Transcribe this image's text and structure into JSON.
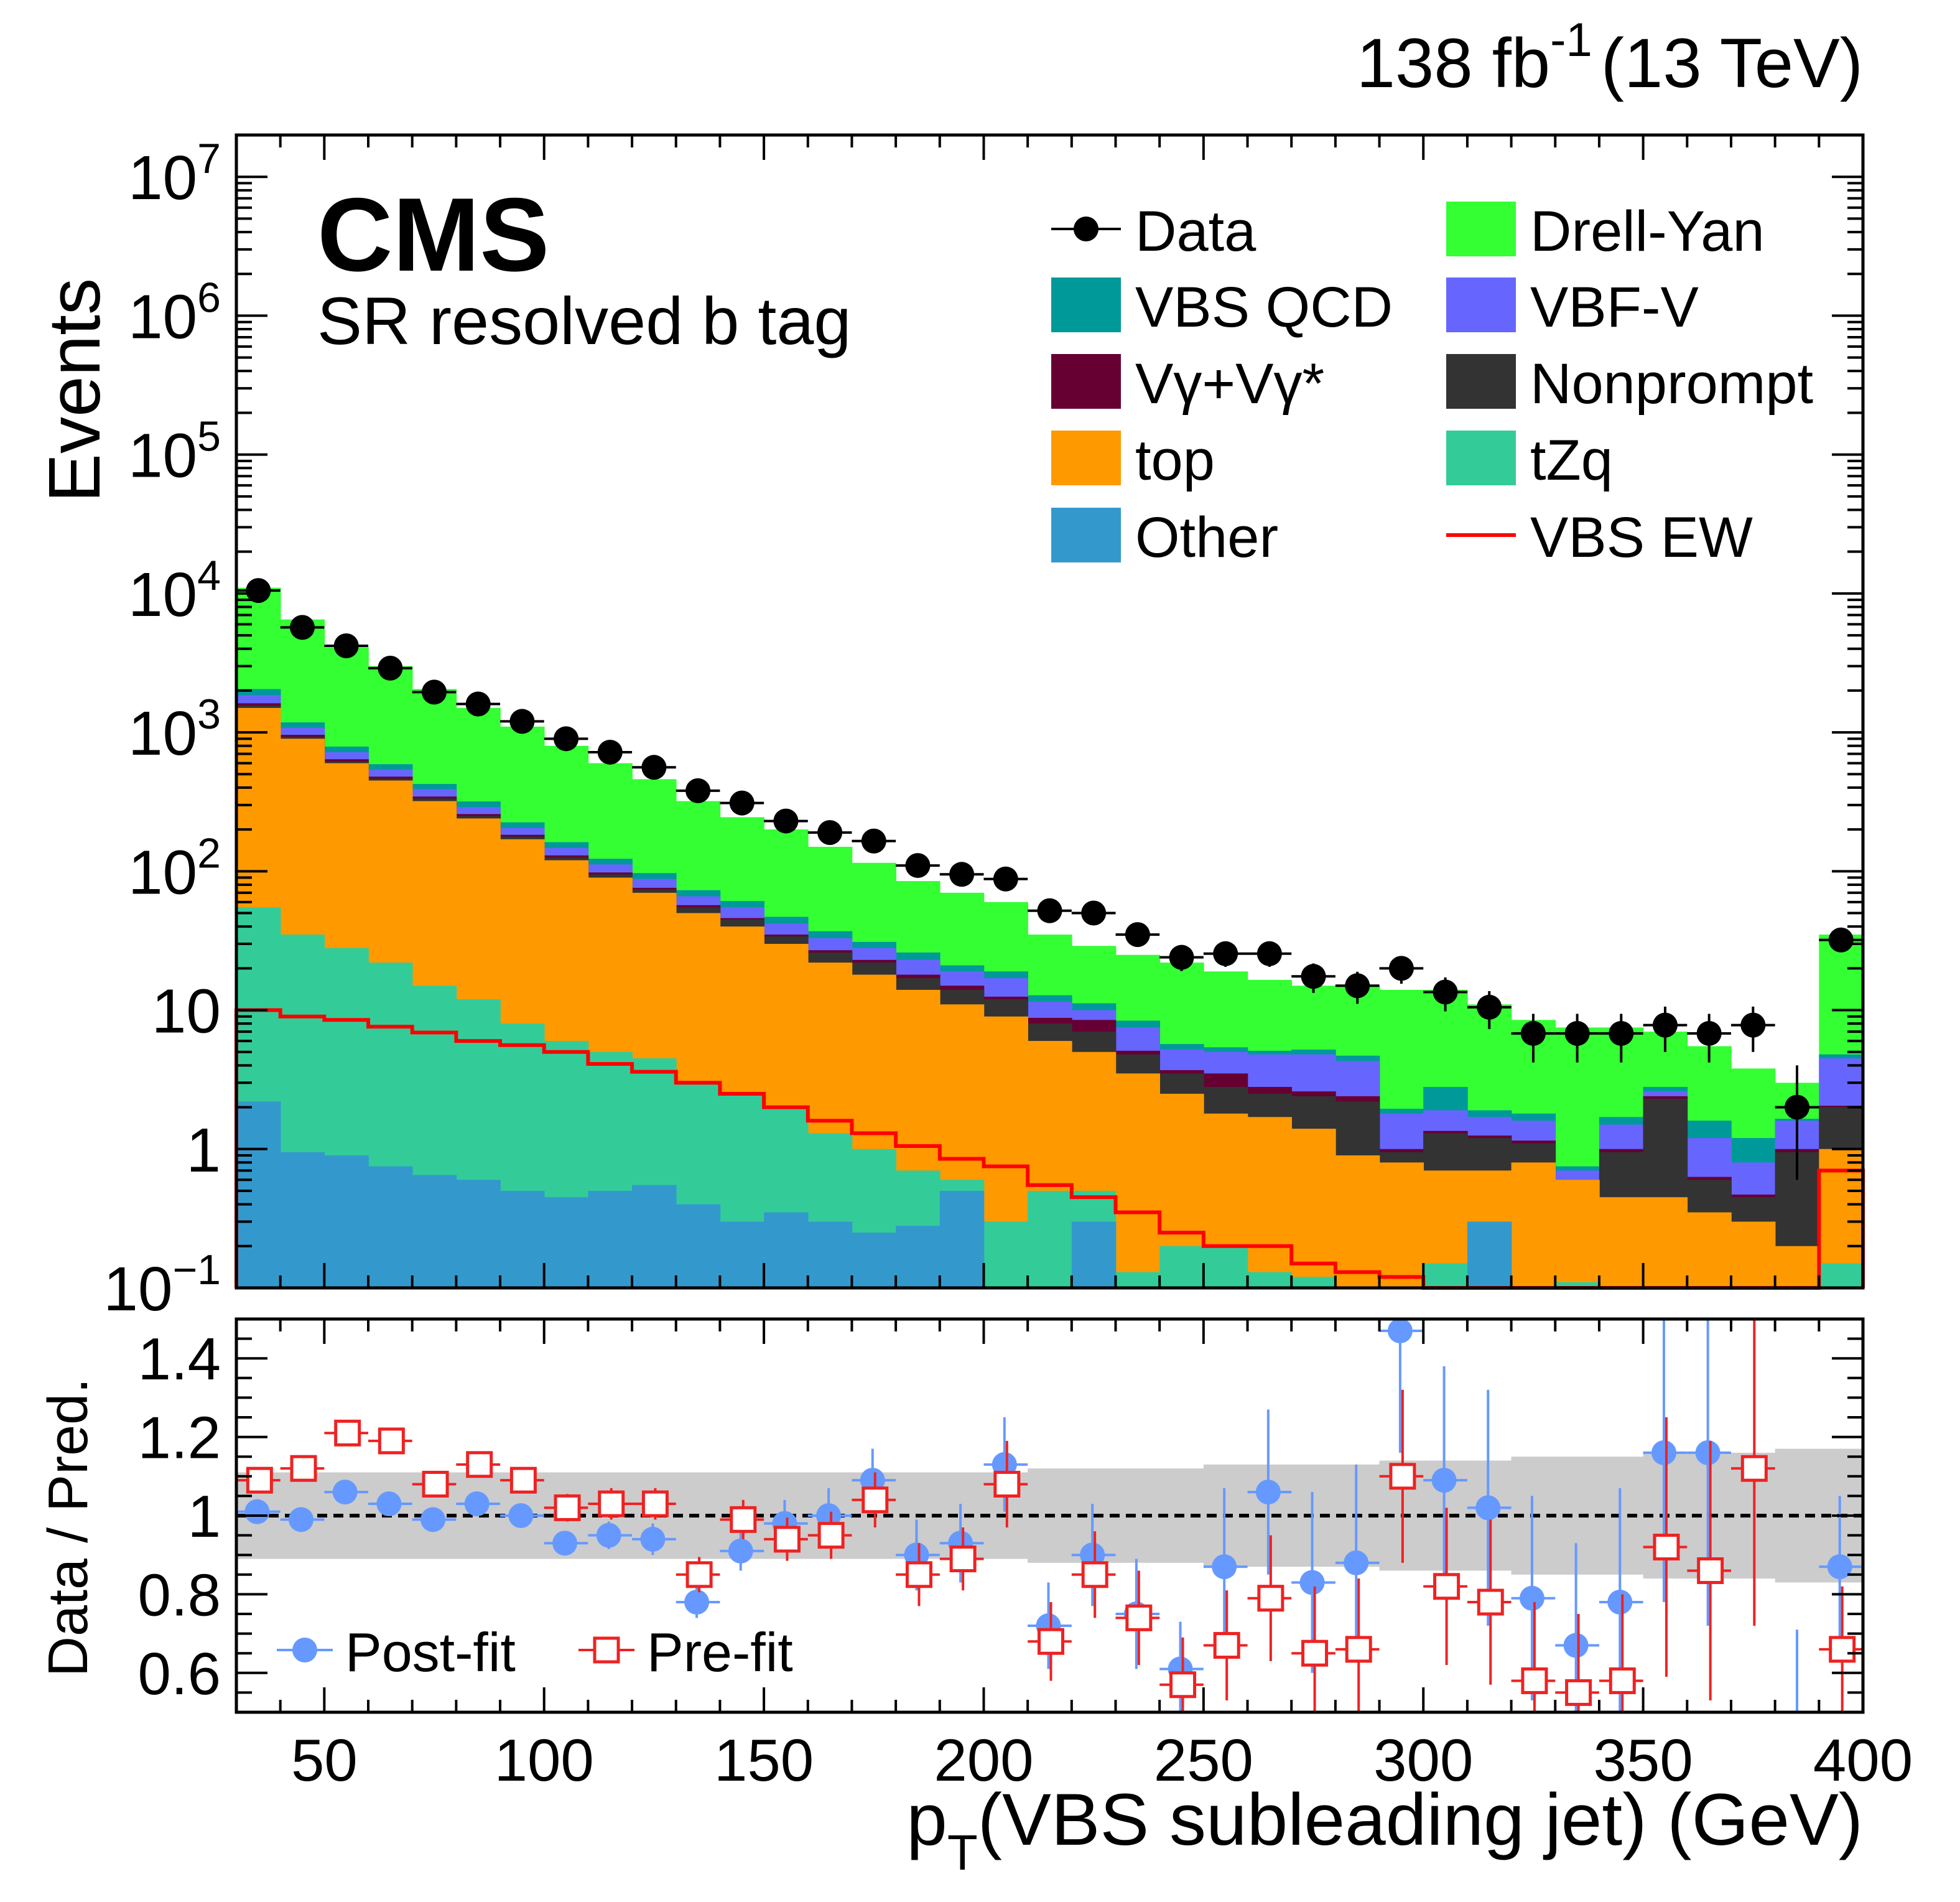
{
  "header": {
    "lumi_prefix": "138 fb",
    "lumi_exp": "-1",
    "energy": "(13 TeV)"
  },
  "cms_label": "CMS",
  "region_label": "SR resolved b tag",
  "chart_data": [
    {
      "type": "stacked_histogram",
      "scale": "log",
      "ylabel": "Events",
      "xlim": [
        30,
        400
      ],
      "ylim": [
        0.1,
        20000000
      ],
      "y_ticks": [
        {
          "v": 0.1,
          "base": "10",
          "exp": "−1"
        },
        {
          "v": 1,
          "base": "1",
          "exp": ""
        },
        {
          "v": 10,
          "base": "10",
          "exp": ""
        },
        {
          "v": 100,
          "base": "10",
          "exp": "2"
        },
        {
          "v": 1000,
          "base": "10",
          "exp": "3"
        },
        {
          "v": 10000,
          "base": "10",
          "exp": "4"
        },
        {
          "v": 100000,
          "base": "10",
          "exp": "5"
        },
        {
          "v": 1000000,
          "base": "10",
          "exp": "6"
        },
        {
          "v": 10000000,
          "base": "10",
          "exp": "7"
        }
      ],
      "bin_edges": [
        30,
        40,
        50,
        60,
        70,
        80,
        90,
        100,
        110,
        120,
        130,
        140,
        150,
        160,
        170,
        180,
        190,
        200,
        210,
        220,
        230,
        240,
        250,
        260,
        270,
        280,
        290,
        300,
        310,
        320,
        330,
        340,
        350,
        360,
        370,
        380,
        390,
        400
      ],
      "stack_order": [
        "Other",
        "tZq",
        "top",
        "Nonprompt",
        "Vγ+Vγ*",
        "VBF-V",
        "VBS QCD",
        "Drell-Yan"
      ],
      "stack_cumulative": {
        "Other": [
          2.2,
          0.95,
          0.9,
          0.75,
          0.65,
          0.6,
          0.5,
          0.45,
          0.5,
          0.55,
          0.4,
          0.3,
          0.35,
          0.3,
          0.25,
          0.28,
          0.5,
          0.1,
          0.1,
          0.3,
          0.1,
          0.1,
          0.09,
          0.09,
          0.08,
          0.08,
          0.09,
          0.09,
          0.3,
          0.09,
          0.09,
          0.09,
          0.09,
          0.09,
          0.09,
          0.09,
          0.09
        ],
        "tZq": [
          55,
          35,
          28,
          22,
          15,
          12,
          8,
          6,
          5,
          4.5,
          3,
          2.5,
          2,
          1.3,
          1,
          0.7,
          0.6,
          0.3,
          0.5,
          0.5,
          0.13,
          0.2,
          0.2,
          0.13,
          0.12,
          0.1,
          0.1,
          0.15,
          0.2,
          0.1,
          0.11,
          0.1,
          0.1,
          0.1,
          0.1,
          0.1,
          0.15
        ],
        "top": [
          1500,
          900,
          600,
          450,
          320,
          240,
          170,
          120,
          90,
          70,
          50,
          40,
          30,
          22,
          18,
          14,
          11,
          9,
          6,
          5,
          3.5,
          2.5,
          1.8,
          1.7,
          1.4,
          0.9,
          0.8,
          0.7,
          0.7,
          0.8,
          0.6,
          0.45,
          0.45,
          0.35,
          0.3,
          0.2,
          1.0
        ],
        "Nonprompt": [
          1560,
          930,
          620,
          465,
          335,
          250,
          178,
          126,
          95,
          74,
          55,
          45,
          34,
          26,
          22,
          17,
          14,
          12,
          8,
          7,
          4.8,
          3.5,
          2.8,
          2.5,
          2.4,
          2.2,
          0.95,
          1.3,
          1.2,
          1.1,
          0.35,
          0.95,
          2.3,
          0.6,
          0.45,
          0.95,
          2.0
        ],
        "Vγ+Vγ*": [
          1620,
          960,
          640,
          480,
          345,
          258,
          183,
          130,
          98,
          76,
          57,
          46,
          35,
          27,
          23,
          18,
          15,
          12.5,
          8.8,
          8.5,
          5.1,
          3.7,
          3.5,
          2.8,
          2.6,
          2.4,
          1.0,
          1.35,
          1.25,
          1.15,
          0.37,
          1.0,
          2.4,
          0.63,
          0.47,
          1.0,
          2.05
        ],
        "VBF-V": [
          1850,
          1080,
          720,
          540,
          390,
          290,
          205,
          147,
          112,
          88,
          66,
          55,
          42,
          33,
          28,
          23,
          19,
          17,
          11.5,
          10,
          7.5,
          5.2,
          5.0,
          4.8,
          4.8,
          4.3,
          1.8,
          1.9,
          1.7,
          1.6,
          0.7,
          1.5,
          2.6,
          1.2,
          0.8,
          1.6,
          4.5
        ],
        "VBS QCD": [
          2050,
          1180,
          790,
          590,
          425,
          318,
          225,
          162,
          123,
          97,
          73,
          61,
          47,
          37,
          31,
          26,
          21,
          19,
          12.8,
          11.2,
          8.4,
          5.7,
          5.4,
          5.1,
          5.2,
          4.7,
          1.95,
          2.8,
          1.9,
          1.8,
          0.75,
          1.7,
          2.8,
          1.6,
          1.2,
          1.65,
          4.8
        ],
        "Drell-Yan": [
          11000,
          6500,
          4100,
          3000,
          2050,
          1500,
          1100,
          800,
          600,
          460,
          320,
          245,
          200,
          150,
          115,
          85,
          70,
          60,
          35,
          29,
          25,
          22,
          19,
          16.5,
          15,
          15,
          14,
          14,
          11,
          8.5,
          7.5,
          7.5,
          7.0,
          5.5,
          3.8,
          3.0,
          35
        ]
      },
      "vbs_ew": [
        10,
        9,
        8.5,
        7.6,
        6.9,
        6,
        5.6,
        5,
        4.1,
        3.6,
        3,
        2.5,
        2,
        1.6,
        1.3,
        1.05,
        0.85,
        0.75,
        0.55,
        0.45,
        0.35,
        0.25,
        0.2,
        0.2,
        0.15,
        0.13,
        0.12,
        0.1,
        0.08,
        0.1,
        0.08,
        0.08,
        0.07,
        0.07,
        0.07,
        0.07,
        0.7
      ],
      "data": {
        "x": [
          35,
          45,
          55,
          65,
          75,
          85,
          95,
          105,
          115,
          125,
          135,
          145,
          155,
          165,
          175,
          185,
          195,
          205,
          215,
          225,
          235,
          245,
          255,
          265,
          275,
          285,
          295,
          305,
          315,
          325,
          335,
          345,
          355,
          365,
          375,
          385,
          395
        ],
        "y": [
          10500,
          5700,
          4200,
          2900,
          1950,
          1600,
          1200,
          900,
          720,
          560,
          380,
          310,
          230,
          190,
          165,
          110,
          95,
          88,
          52,
          50,
          35,
          24,
          25.5,
          25.5,
          17.5,
          15,
          20,
          13.5,
          10.5,
          6.8,
          6.8,
          6.8,
          7.8,
          6.8,
          7.8,
          2.0,
          32
        ],
        "err_lo": [
          100,
          75,
          65,
          54,
          44,
          40,
          35,
          30,
          27,
          24,
          20,
          18,
          15,
          14,
          13,
          10.5,
          10,
          9.5,
          7.2,
          7.1,
          5.9,
          4.9,
          5,
          5,
          4.2,
          3.9,
          4.5,
          3.7,
          3.2,
          2.6,
          2.6,
          2.6,
          2.8,
          2.6,
          2.8,
          1.4,
          5.7
        ],
        "err_hi": [
          100,
          75,
          65,
          54,
          44,
          40,
          35,
          30,
          27,
          24,
          20,
          18,
          15,
          14,
          13,
          10.5,
          10,
          9.5,
          7.2,
          7.1,
          5.9,
          4.9,
          5,
          5,
          4.2,
          3.9,
          4.5,
          3.7,
          3.2,
          2.6,
          2.6,
          2.6,
          2.8,
          2.6,
          2.8,
          2.0,
          5.7
        ]
      },
      "legend": [
        {
          "label": "Data",
          "kind": "marker",
          "color": "#000000"
        },
        {
          "label": "Drell-Yan",
          "kind": "box",
          "color": "#33ff33"
        },
        {
          "label": "VBS QCD",
          "kind": "box",
          "color": "#009999"
        },
        {
          "label": "VBF-V",
          "kind": "box",
          "color": "#6666ff"
        },
        {
          "label": "Vγ+Vγ*",
          "kind": "box",
          "color": "#660033"
        },
        {
          "label": "Nonprompt",
          "kind": "box",
          "color": "#333333"
        },
        {
          "label": "top",
          "kind": "box",
          "color": "#ff9900"
        },
        {
          "label": "tZq",
          "kind": "box",
          "color": "#33cc99"
        },
        {
          "label": "Other",
          "kind": "box",
          "color": "#3399cc"
        },
        {
          "label": "VBS EW",
          "kind": "line",
          "color": "#ff0000"
        }
      ]
    },
    {
      "type": "ratio",
      "ylabel": "Data / Pred.",
      "xlabel_main": "p",
      "xlabel_sub": "T",
      "xlabel_rest": "(VBS subleading jet) (GeV)",
      "xlim": [
        30,
        400
      ],
      "ylim": [
        0.5,
        1.5
      ],
      "x_ticks": [
        50,
        100,
        150,
        200,
        250,
        300,
        350,
        400
      ],
      "y_ticks": [
        "0.6",
        "0.8",
        "1",
        "1.2",
        "1.4"
      ],
      "y_tick_values": [
        0.6,
        0.8,
        1.0,
        1.2,
        1.4
      ],
      "reference_line": 1.0,
      "band_half_width": [
        0.11,
        0.11,
        0.11,
        0.11,
        0.11,
        0.11,
        0.11,
        0.11,
        0.11,
        0.11,
        0.11,
        0.11,
        0.11,
        0.11,
        0.11,
        0.11,
        0.11,
        0.11,
        0.12,
        0.12,
        0.12,
        0.12,
        0.13,
        0.13,
        0.13,
        0.13,
        0.14,
        0.14,
        0.14,
        0.15,
        0.15,
        0.15,
        0.16,
        0.16,
        0.16,
        0.17,
        0.17
      ],
      "series": [
        {
          "name": "Post-fit",
          "color": "#6699ff",
          "marker": "filled-circle",
          "x": [
            35,
            45,
            55,
            65,
            75,
            85,
            95,
            105,
            115,
            125,
            135,
            145,
            155,
            165,
            175,
            185,
            195,
            205,
            215,
            225,
            235,
            245,
            255,
            265,
            275,
            285,
            295,
            305,
            315,
            325,
            335,
            345,
            355,
            365,
            375,
            385,
            395
          ],
          "y": [
            1.01,
            0.99,
            1.06,
            1.03,
            0.99,
            1.03,
            1.0,
            0.93,
            0.95,
            0.94,
            0.78,
            0.91,
            0.98,
            1.0,
            1.09,
            0.9,
            0.93,
            1.13,
            0.72,
            0.9,
            0.75,
            0.61,
            0.87,
            1.06,
            0.83,
            0.88,
            1.47,
            1.09,
            1.02,
            0.79,
            0.67,
            0.78,
            1.16,
            1.16,
            null,
            null,
            0.87
          ],
          "err": [
            0.01,
            0.015,
            0.015,
            0.02,
            0.02,
            0.025,
            0.03,
            0.03,
            0.035,
            0.04,
            0.04,
            0.05,
            0.06,
            0.07,
            0.08,
            0.09,
            0.1,
            0.12,
            0.11,
            0.13,
            0.14,
            0.12,
            0.2,
            0.21,
            0.23,
            0.25,
            0.31,
            0.29,
            0.3,
            0.26,
            0.26,
            0.29,
            0.38,
            0.44,
            null,
            null,
            0.18
          ]
        },
        {
          "name": "Pre-fit",
          "color": "#ee2222",
          "marker": "open-square",
          "x": [
            35,
            45,
            55,
            65,
            75,
            85,
            95,
            105,
            115,
            125,
            135,
            145,
            155,
            165,
            175,
            185,
            195,
            205,
            215,
            225,
            235,
            245,
            255,
            265,
            275,
            285,
            295,
            305,
            315,
            325,
            335,
            345,
            355,
            365,
            375,
            385,
            395
          ],
          "y": [
            1.09,
            1.12,
            1.21,
            1.19,
            1.08,
            1.13,
            1.09,
            1.02,
            1.03,
            1.03,
            0.85,
            0.99,
            0.94,
            0.95,
            1.04,
            0.85,
            0.89,
            1.08,
            0.68,
            0.85,
            0.74,
            0.57,
            0.67,
            0.79,
            0.65,
            0.66,
            1.1,
            0.82,
            0.78,
            0.58,
            0.55,
            0.58,
            0.92,
            0.86,
            1.12,
            null,
            0.66
          ],
          "err": [
            0.015,
            0.015,
            0.02,
            0.02,
            0.025,
            0.03,
            0.03,
            0.035,
            0.04,
            0.04,
            0.045,
            0.05,
            0.055,
            0.06,
            0.07,
            0.08,
            0.08,
            0.11,
            0.1,
            0.11,
            0.12,
            0.12,
            0.14,
            0.16,
            0.17,
            0.18,
            0.22,
            0.2,
            0.21,
            0.2,
            0.2,
            0.22,
            0.33,
            0.33,
            0.4,
            null,
            0.16
          ]
        }
      ],
      "legend": [
        {
          "label": "Post-fit",
          "color": "#6699ff",
          "marker": "filled-circle"
        },
        {
          "label": "Pre-fit",
          "color": "#ee2222",
          "marker": "open-square"
        }
      ],
      "lone_error_bar": {
        "x": 385,
        "y_lo": 0.5,
        "y_hi": 0.71,
        "color": "#6699ff"
      }
    }
  ]
}
